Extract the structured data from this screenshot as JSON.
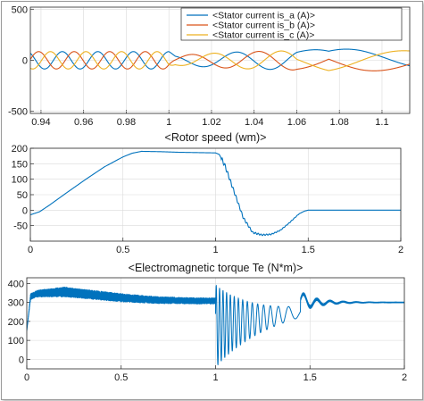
{
  "colors": {
    "a": "#0072BD",
    "b": "#D95319",
    "c": "#EDB120",
    "line": "#0072BD",
    "axis": "#262626",
    "grid": "#d9d9d9"
  },
  "chart_data": [
    {
      "type": "line",
      "title": "",
      "xlabel": "",
      "ylabel": "",
      "xlim": [
        0.935,
        1.113
      ],
      "ylim": [
        -520,
        520
      ],
      "grid": true,
      "legend_position": "top-right",
      "x_ticks": [
        0.94,
        0.96,
        0.98,
        1,
        1.02,
        1.04,
        1.06,
        1.08,
        1.1
      ],
      "x_tick_labels": [
        "0.94",
        "0.96",
        "0.98",
        "1",
        "1.02",
        "1.04",
        "1.06",
        "1.08",
        "1.1"
      ],
      "y_ticks": [
        -500,
        0,
        500
      ],
      "y_tick_labels": [
        "-500",
        "0",
        "500"
      ],
      "series": [
        {
          "name": "<Stator current is_a (A)>",
          "color_key": "a",
          "phase_deg": 0
        },
        {
          "name": "<Stator current is_b (A)>",
          "color_key": "b",
          "phase_deg": -120
        },
        {
          "name": "<Stator current is_c (A)>",
          "color_key": "c",
          "phase_deg": 120
        }
      ],
      "steady_amplitude": 85,
      "steady_frequency_hz": 60,
      "envelope": {
        "x": [
          0.935,
          1.0,
          1.003,
          1.02,
          1.033,
          1.045,
          1.055,
          1.065,
          1.075,
          1.09,
          1.113
        ],
        "y": [
          85,
          85,
          48,
          68,
          82,
          88,
          92,
          100,
          110,
          108,
          92
        ]
      },
      "electrical_angle_after_step": {
        "x": [
          1.0,
          1.06,
          1.075,
          1.113
        ],
        "y_cycles": [
          0,
          1.9,
          2.1,
          1.65
        ]
      }
    },
    {
      "type": "line",
      "title": "<Rotor speed (wm)>",
      "xlabel": "",
      "ylabel": "",
      "xlim": [
        0,
        2
      ],
      "ylim": [
        -100,
        200
      ],
      "grid": true,
      "x_ticks": [
        0,
        0.5,
        1,
        1.5,
        2
      ],
      "x_tick_labels": [
        "0",
        "0.5",
        "1",
        "1.5",
        "2"
      ],
      "y_ticks": [
        -50,
        0,
        50,
        100,
        150,
        200
      ],
      "y_tick_labels": [
        "-50",
        "0",
        "50",
        "100",
        "150",
        "200"
      ],
      "x": [
        0,
        0.05,
        0.1,
        0.2,
        0.3,
        0.4,
        0.5,
        0.55,
        0.6,
        0.7,
        0.8,
        0.9,
        1.0,
        1.02,
        1.05,
        1.1,
        1.15,
        1.2,
        1.25,
        1.3,
        1.35,
        1.4,
        1.45,
        1.48,
        1.5,
        1.6,
        1.8,
        2.0
      ],
      "y": [
        -15,
        -5,
        15,
        58,
        100,
        140,
        172,
        184,
        190,
        189,
        187,
        186,
        185,
        180,
        145,
        60,
        -25,
        -72,
        -80,
        -78,
        -65,
        -40,
        -12,
        -3,
        0,
        0,
        0,
        0
      ]
    },
    {
      "type": "line",
      "title": "<Electromagnetic torque Te (N*m)>",
      "xlabel": "",
      "ylabel": "",
      "xlim": [
        0,
        2
      ],
      "ylim": [
        -50,
        430
      ],
      "grid": true,
      "x_ticks": [
        0,
        0.5,
        1,
        1.5,
        2
      ],
      "x_tick_labels": [
        "0",
        "0.5",
        "1",
        "1.5",
        "2"
      ],
      "y_ticks": [
        0,
        100,
        200,
        300,
        400
      ],
      "y_tick_labels": [
        "0",
        "100",
        "200",
        "300",
        "400"
      ],
      "steady_value": 300,
      "x": [
        0,
        0.02,
        0.05,
        0.1,
        0.2,
        0.3,
        0.4,
        0.5,
        0.6,
        0.7,
        0.8,
        0.9,
        0.99
      ],
      "y": [
        150,
        330,
        345,
        350,
        355,
        345,
        335,
        325,
        318,
        312,
        310,
        308,
        308
      ],
      "ripple": [
        0,
        18,
        20,
        22,
        28,
        26,
        25,
        24,
        22,
        20,
        19,
        18,
        18
      ],
      "oscillation_after_step": {
        "start": 1.0,
        "end": 1.45,
        "min": -40,
        "max": 395
      },
      "settling": {
        "x": [
          1.45,
          1.5,
          1.6,
          1.8,
          2.0
        ],
        "y": [
          315,
          300,
          300,
          300,
          300
        ],
        "ripple": [
          8,
          10,
          6,
          4,
          4
        ]
      }
    }
  ]
}
